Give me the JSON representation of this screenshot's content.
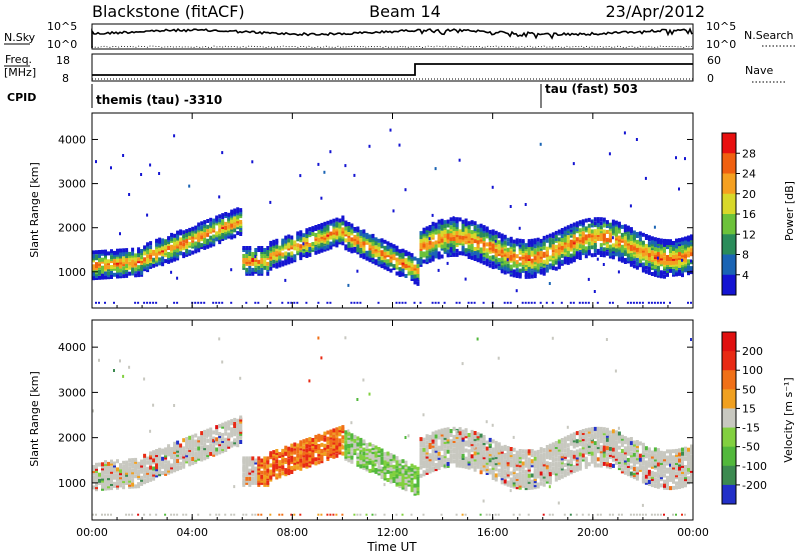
{
  "header": {
    "station": "Blackstone (fitACF)",
    "beam": "Beam 14",
    "date": "23/Apr/2012"
  },
  "nsky": {
    "label": "N.Sky",
    "ticks": [
      "10^5",
      "10^0"
    ]
  },
  "nsearch": {
    "label": "N.Search",
    "ticks": [
      "10^5",
      "10^0"
    ]
  },
  "freq": {
    "label_line1": "Freq.",
    "label_line2": "[MHz]",
    "ticks": [
      18,
      8
    ]
  },
  "nave": {
    "label": "Nave",
    "ticks": [
      60,
      0
    ]
  },
  "cpid": {
    "label": "CPID",
    "left_mode": "themis (tau)  -3310",
    "right_mode": "tau (fast) 503"
  },
  "chart_data": [
    {
      "type": "heatmap",
      "name": "power",
      "ylabel": "Slant Range [km]",
      "ylim": [
        180,
        4600
      ],
      "yticks": [
        1000,
        2000,
        3000,
        4000
      ],
      "xlabel": "Time UT",
      "xticks": [
        "00:00",
        "04:00",
        "08:00",
        "12:00",
        "16:00",
        "20:00",
        "00:00"
      ],
      "colorbar": {
        "label": "Power [dB]",
        "ticks": [
          4,
          8,
          12,
          16,
          20,
          24,
          28
        ]
      }
    },
    {
      "type": "heatmap",
      "name": "velocity",
      "ylabel": "Slant Range [km]",
      "ylim": [
        180,
        4600
      ],
      "yticks": [
        1000,
        2000,
        3000,
        4000
      ],
      "xlabel": "Time UT",
      "xticks": [
        "00:00",
        "04:00",
        "08:00",
        "12:00",
        "16:00",
        "20:00",
        "00:00"
      ],
      "colorbar": {
        "label": "Velocity [m s⁻¹]",
        "ticks": [
          200,
          100,
          50,
          15,
          -15,
          -50,
          -100,
          -200
        ]
      }
    }
  ],
  "colors": {
    "power_scale": [
      "#1414d2",
      "#1a64b4",
      "#2a8c5a",
      "#6cc23a",
      "#d8d82a",
      "#f5a020",
      "#f06010",
      "#e81010"
    ],
    "velocity_scale": [
      "#2230c8",
      "#3c8a50",
      "#52b83c",
      "#82d040",
      "#c8c8c0",
      "#f0a020",
      "#f07018",
      "#e82a14",
      "#e01010"
    ]
  }
}
